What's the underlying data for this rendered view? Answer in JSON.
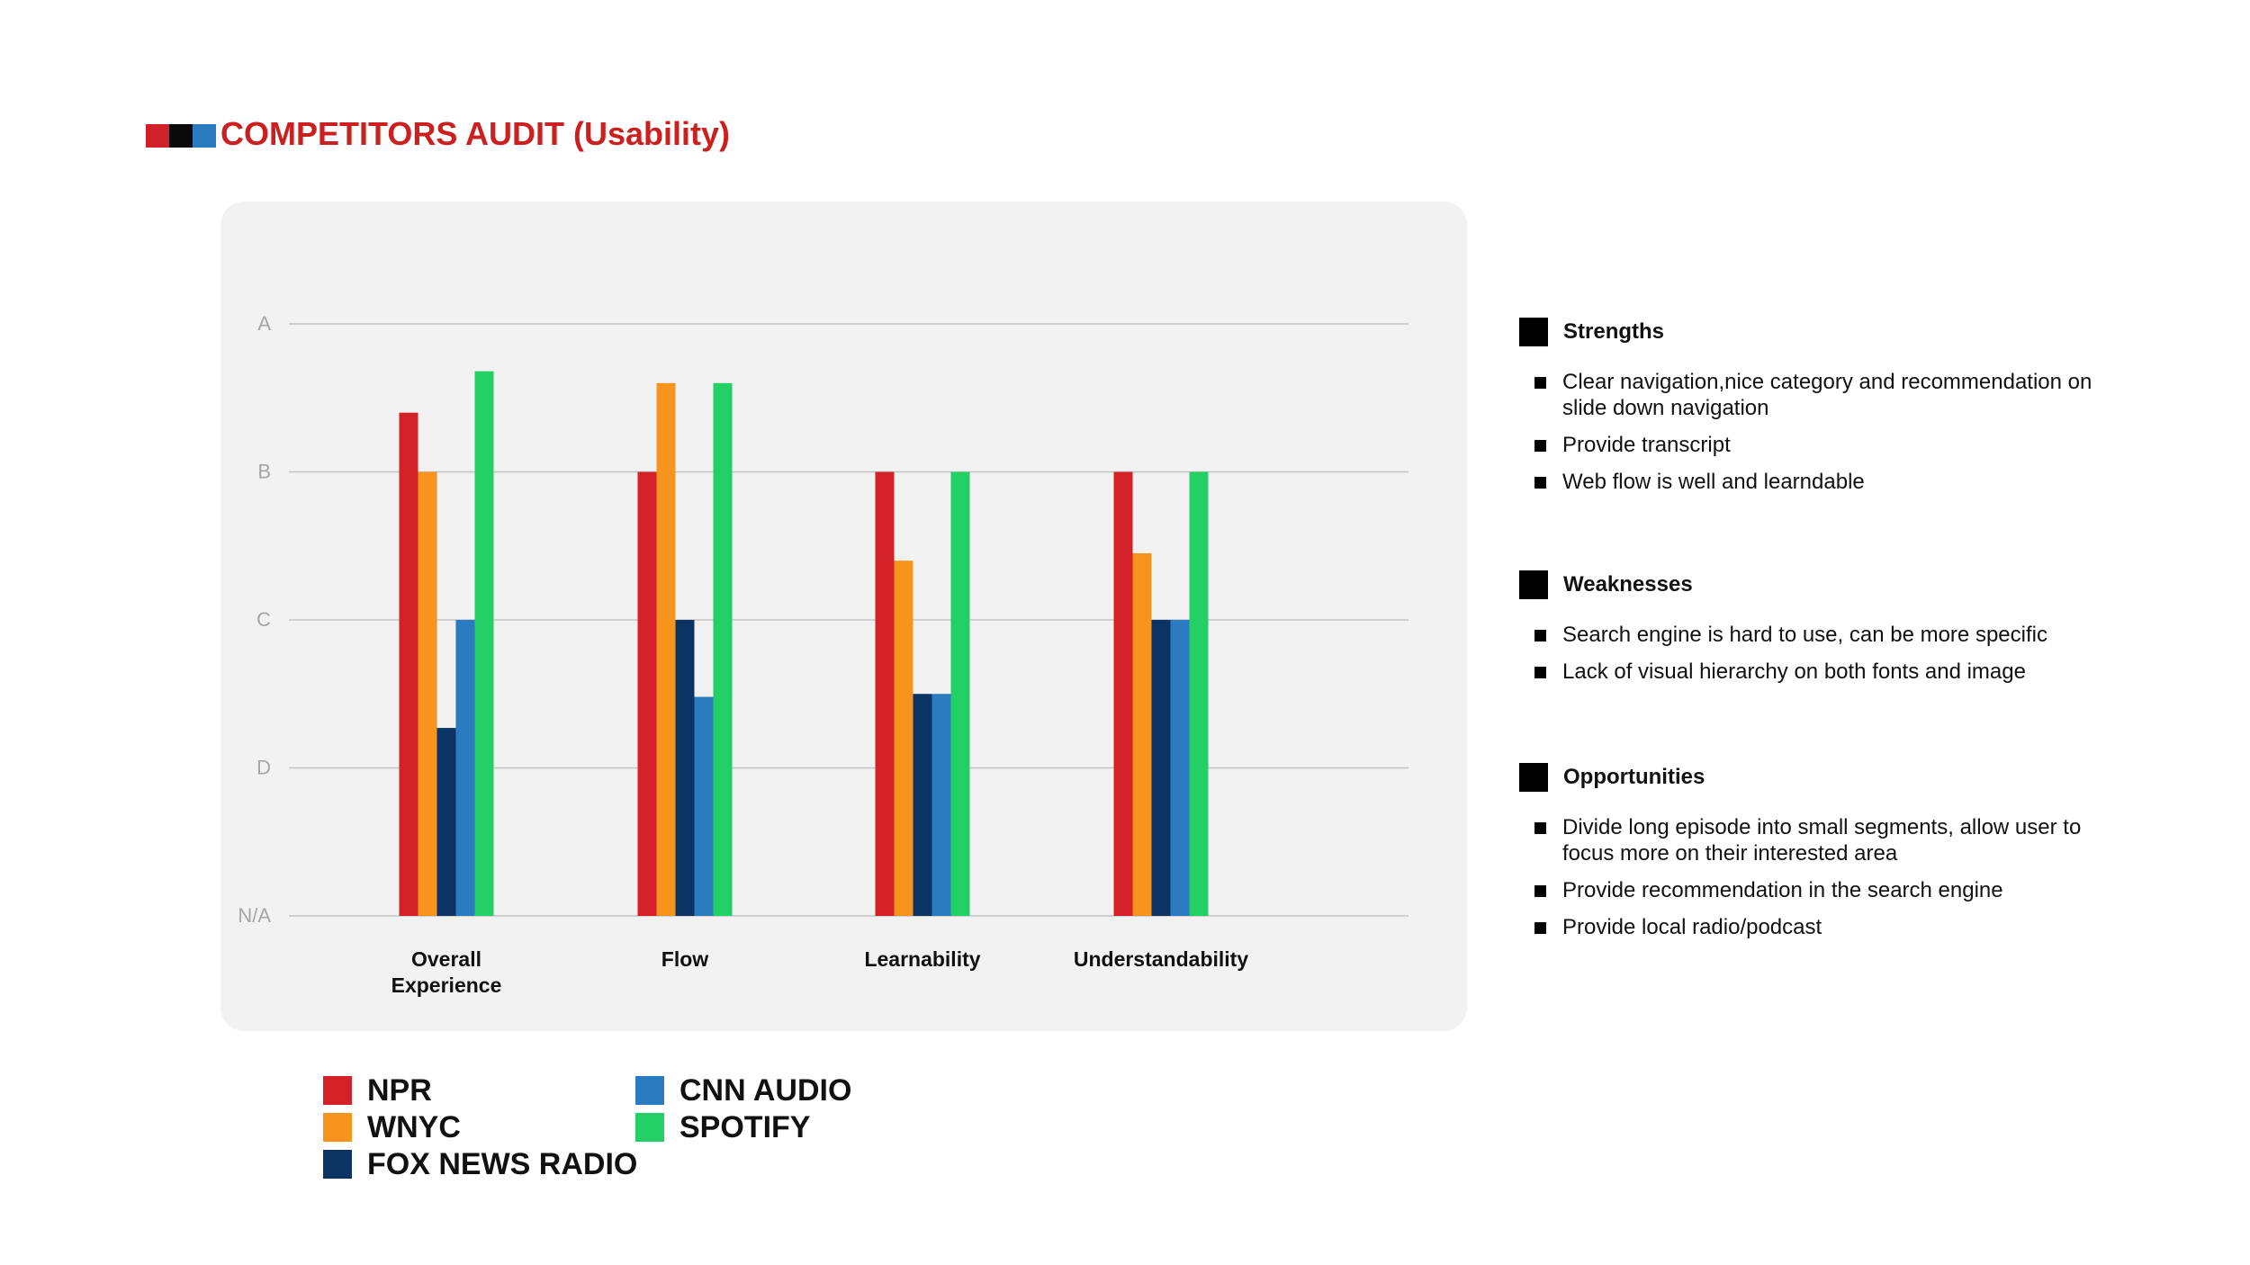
{
  "header": {
    "title": "COMPETITORS AUDIT (Usability)",
    "title_color": "#cc1f1f",
    "logo_colors": [
      "#d0202a",
      "#0a0a0a",
      "#2a7bbf"
    ]
  },
  "chart_data": {
    "type": "bar",
    "title": "",
    "xlabel": "",
    "ylabel": "",
    "y_ticks": [
      "N/A",
      "C",
      "D",
      "B",
      "A"
    ],
    "y_tick_order": [
      "N/A",
      "D",
      "C",
      "B",
      "A"
    ],
    "ylim": [
      0,
      4
    ],
    "grid": true,
    "legend_position": "bottom-left",
    "categories": [
      [
        "Overall",
        "Experience"
      ],
      [
        "Flow"
      ],
      [
        "Learnability"
      ],
      [
        "Understandability"
      ]
    ],
    "series": [
      {
        "name": "NPR",
        "color": "#d42027",
        "values": [
          3.4,
          3.0,
          3.0,
          3.0
        ]
      },
      {
        "name": "WNYC",
        "color": "#f7941d",
        "values": [
          3.0,
          3.6,
          2.4,
          2.45
        ]
      },
      {
        "name": "FOX NEWS RADIO",
        "color": "#0b3464",
        "values": [
          1.27,
          2.0,
          1.5,
          2.0
        ]
      },
      {
        "name": "CNN AUDIO",
        "color": "#2a7bbf",
        "values": [
          2.0,
          1.48,
          1.5,
          2.0
        ]
      },
      {
        "name": "SPOTIFY",
        "color": "#22d065",
        "values": [
          3.68,
          3.6,
          3.0,
          3.0
        ]
      }
    ]
  },
  "sections": [
    {
      "title": "Strengths",
      "items": [
        "Clear navigation,nice category and recommendation on\n slide down navigation",
        "Provide transcript",
        "Web flow is well and learndable"
      ]
    },
    {
      "title": "Weaknesses",
      "items": [
        "Search engine is hard to use, can be more specific",
        "Lack of visual hierarchy on both fonts and image"
      ]
    },
    {
      "title": "Opportunities",
      "items": [
        "Divide long episode into small segments, allow user to focus more on their interested area",
        "Provide recommendation in the search engine",
        "Provide local radio/podcast"
      ]
    }
  ]
}
